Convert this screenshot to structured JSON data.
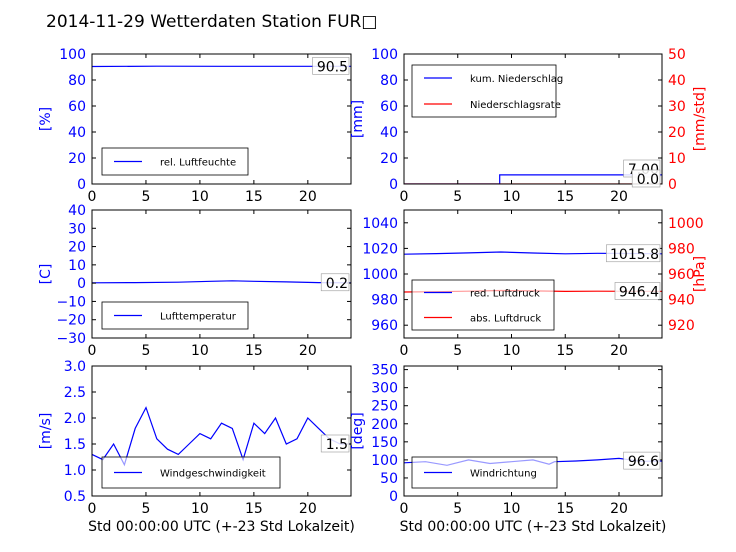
{
  "title": "2014-11-29 Wetterdaten Station FUR□",
  "colors": {
    "left_axis": "#0000ff",
    "right_axis": "#ff0000",
    "series_blue": "#0000ff",
    "series_red": "#ff0000"
  },
  "chart_data": [
    {
      "id": "humidity",
      "type": "line",
      "xlabel": "",
      "ylabel": "[%]",
      "xlim": [
        0,
        24
      ],
      "ylim": [
        0,
        100
      ],
      "xticks": [
        0,
        5,
        10,
        15,
        20
      ],
      "yticks": [
        0,
        20,
        40,
        60,
        80,
        100
      ],
      "series": [
        {
          "name": "rel. Luftfeuchte",
          "axis": "left",
          "x": [
            0,
            6,
            12,
            18,
            24
          ],
          "values": [
            90.4,
            90.6,
            90.5,
            90.5,
            90.5
          ]
        }
      ],
      "value_labels": [
        {
          "text": "90.5",
          "value": 90.5
        }
      ],
      "legend": {
        "location": "lower-left",
        "entries": [
          "rel. Luftfeuchte"
        ]
      }
    },
    {
      "id": "precipitation",
      "type": "line",
      "xlabel": "",
      "ylabel": "[mm]",
      "ylabel_right": "[mm/std]",
      "xlim": [
        0,
        24
      ],
      "ylim": [
        0,
        100
      ],
      "ylim_right": [
        0,
        50
      ],
      "xticks": [
        0,
        5,
        10,
        15,
        20
      ],
      "yticks": [
        0,
        20,
        40,
        60,
        80,
        100
      ],
      "yticks_right": [
        0,
        10,
        20,
        30,
        40,
        50
      ],
      "series": [
        {
          "name": "kum. Niederschlag",
          "axis": "left",
          "x": [
            0,
            8.9,
            8.9,
            24
          ],
          "values": [
            0,
            0,
            7.0,
            7.0
          ]
        },
        {
          "name": "Niederschlagsrate",
          "axis": "right",
          "x": [
            0,
            24
          ],
          "values": [
            0,
            0
          ]
        }
      ],
      "value_labels": [
        {
          "text": "7.00",
          "value": 7.0
        },
        {
          "text": "0.0",
          "value": 0.0
        }
      ],
      "legend": {
        "location": "upper-left",
        "entries": [
          "kum. Niederschlag",
          "Niederschlagsrate"
        ]
      }
    },
    {
      "id": "temperature",
      "type": "line",
      "xlabel": "",
      "ylabel": "[C]",
      "xlim": [
        0,
        24
      ],
      "ylim": [
        -30,
        40
      ],
      "xticks": [
        0,
        5,
        10,
        15,
        20
      ],
      "yticks": [
        -30,
        -20,
        -10,
        0,
        10,
        20,
        30,
        40
      ],
      "series": [
        {
          "name": "Lufttemperatur",
          "axis": "left",
          "x": [
            0,
            4,
            8,
            11,
            13,
            15,
            18,
            21,
            24
          ],
          "values": [
            0.2,
            0.3,
            0.5,
            1.0,
            1.3,
            1.0,
            0.7,
            0.3,
            0.2
          ]
        }
      ],
      "value_labels": [
        {
          "text": "0.2",
          "value": 0.2
        }
      ],
      "legend": {
        "location": "lower-left",
        "entries": [
          "Lufttemperatur"
        ]
      }
    },
    {
      "id": "pressure",
      "type": "line",
      "xlabel": "",
      "ylabel": "",
      "ylabel_right": "[hPa]",
      "xlim": [
        0,
        24
      ],
      "ylim": [
        950,
        1050
      ],
      "ylim_right": [
        910,
        1010
      ],
      "xticks": [
        0,
        5,
        10,
        15,
        20
      ],
      "yticks": [
        960,
        980,
        1000,
        1020,
        1040
      ],
      "yticks_right": [
        920,
        940,
        960,
        980,
        1000
      ],
      "series": [
        {
          "name": "red. Luftdruck",
          "axis": "left",
          "x": [
            0,
            3,
            6,
            9,
            12,
            15,
            18,
            21,
            24
          ],
          "values": [
            1015.5,
            1015.9,
            1016.5,
            1017.2,
            1016.4,
            1015.8,
            1016.2,
            1016.0,
            1015.8
          ]
        },
        {
          "name": "abs. Luftdruck",
          "axis": "right",
          "x": [
            0,
            3,
            6,
            9,
            12,
            15,
            18,
            21,
            24
          ],
          "values": [
            945.9,
            946.2,
            946.6,
            947.1,
            946.8,
            946.4,
            946.6,
            946.5,
            946.4
          ]
        }
      ],
      "value_labels": [
        {
          "text": "1015.8",
          "value": 1015.8
        },
        {
          "text": "946.4",
          "value": 946.4
        }
      ],
      "legend": {
        "location": "lower-left",
        "entries": [
          "red. Luftdruck",
          "abs. Luftdruck"
        ]
      }
    },
    {
      "id": "windspeed",
      "type": "line",
      "xlabel": "Std 00:00:00 UTC (+-23 Std Lokalzeit)",
      "ylabel": "[m/s]",
      "xlim": [
        0,
        24
      ],
      "ylim": [
        0.5,
        3.0
      ],
      "xticks": [
        0,
        5,
        10,
        15,
        20
      ],
      "yticks": [
        0.5,
        1.0,
        1.5,
        2.0,
        2.5,
        3.0
      ],
      "series": [
        {
          "name": "Windgeschwindigkeit",
          "axis": "left",
          "x": [
            0,
            1,
            2,
            3,
            4,
            5,
            6,
            7,
            8,
            9,
            10,
            11,
            12,
            13,
            14,
            15,
            16,
            17,
            18,
            19,
            20,
            21,
            22,
            23,
            24
          ],
          "values": [
            1.3,
            1.2,
            1.5,
            1.1,
            1.8,
            2.2,
            1.6,
            1.4,
            1.3,
            1.5,
            1.7,
            1.6,
            1.9,
            1.8,
            1.2,
            1.9,
            1.7,
            2.0,
            1.5,
            1.6,
            2.0,
            1.8,
            1.6,
            1.5,
            1.5
          ]
        }
      ],
      "value_labels": [
        {
          "text": "1.5",
          "value": 1.5
        }
      ],
      "legend": {
        "location": "lower-left",
        "entries": [
          "Windgeschwindigkeit"
        ]
      }
    },
    {
      "id": "winddirection",
      "type": "line",
      "xlabel": "Std 00:00:00 UTC (+-23 Std Lokalzeit)",
      "ylabel": "[deg]",
      "xlim": [
        0,
        24
      ],
      "ylim": [
        0,
        360
      ],
      "xticks": [
        0,
        5,
        10,
        15,
        20
      ],
      "yticks": [
        0,
        50,
        100,
        150,
        200,
        250,
        300,
        350
      ],
      "series": [
        {
          "name": "Windrichtung",
          "axis": "left",
          "x": [
            0,
            2,
            4,
            6,
            8,
            10,
            12,
            13.5,
            14,
            16,
            18,
            20,
            22,
            24
          ],
          "values": [
            92,
            95,
            85,
            100,
            90,
            95,
            100,
            88,
            95,
            97,
            100,
            104,
            96,
            96.6
          ]
        }
      ],
      "value_labels": [
        {
          "text": "96.6",
          "value": 96.6
        }
      ],
      "legend": {
        "location": "lower-left",
        "entries": [
          "Windrichtung"
        ]
      }
    }
  ]
}
